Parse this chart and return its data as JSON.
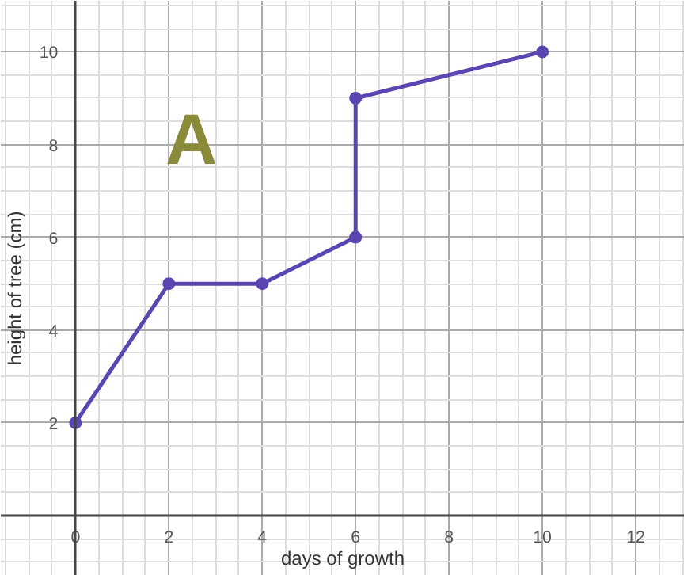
{
  "chart_data": {
    "type": "line",
    "xlabel": "days of growth",
    "ylabel": "height of tree (cm)",
    "annotations": [
      "A"
    ],
    "x": [
      0,
      2,
      4,
      6,
      6,
      10
    ],
    "series": [
      {
        "color": "#5b45b0",
        "values": [
          2,
          5,
          5,
          6,
          9,
          10
        ]
      }
    ],
    "xlim": [
      -1.6,
      13.05
    ],
    "ylim": [
      -1.3,
      11.1
    ],
    "xticks": [
      0,
      2,
      4,
      6,
      8,
      10,
      12
    ],
    "yticks": [
      2,
      4,
      6,
      8,
      10
    ],
    "grid": true,
    "marker": "circle",
    "line_style": "solid"
  }
}
